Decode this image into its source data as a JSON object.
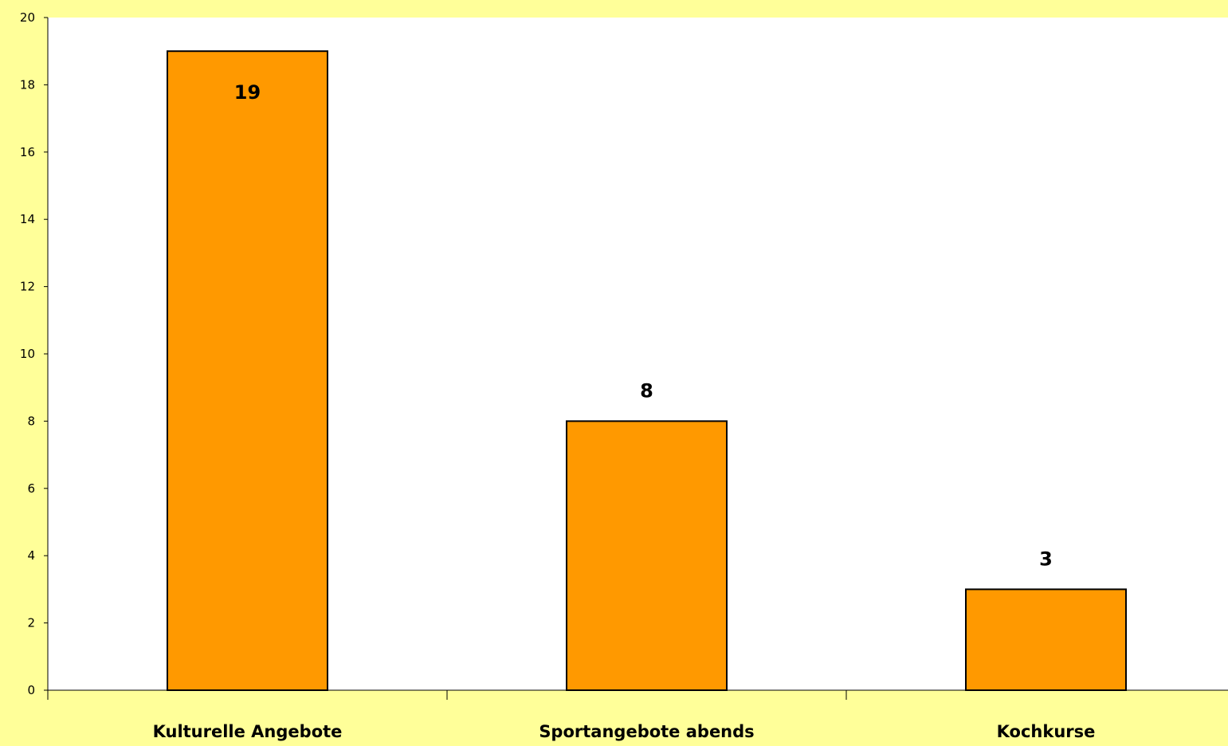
{
  "chart_data": {
    "type": "bar",
    "title": "",
    "xlabel": "",
    "ylabel": "",
    "categories": [
      "Kulturelle Angebote",
      "Sportangebote abends",
      "Kochkurse"
    ],
    "values": [
      19,
      8,
      3
    ],
    "data_labels": [
      "19",
      "8",
      "3"
    ],
    "ylim": [
      0,
      20
    ],
    "yticks": [
      0,
      2,
      4,
      6,
      8,
      10,
      12,
      14,
      16,
      18,
      20
    ],
    "grid": false,
    "legend": "none",
    "colors": {
      "background": "#ffff99",
      "plot_area": "#ffffff",
      "bar_fill": "#ff9900",
      "bar_stroke": "#000000",
      "axis": "#000000",
      "text": "#000000"
    }
  }
}
